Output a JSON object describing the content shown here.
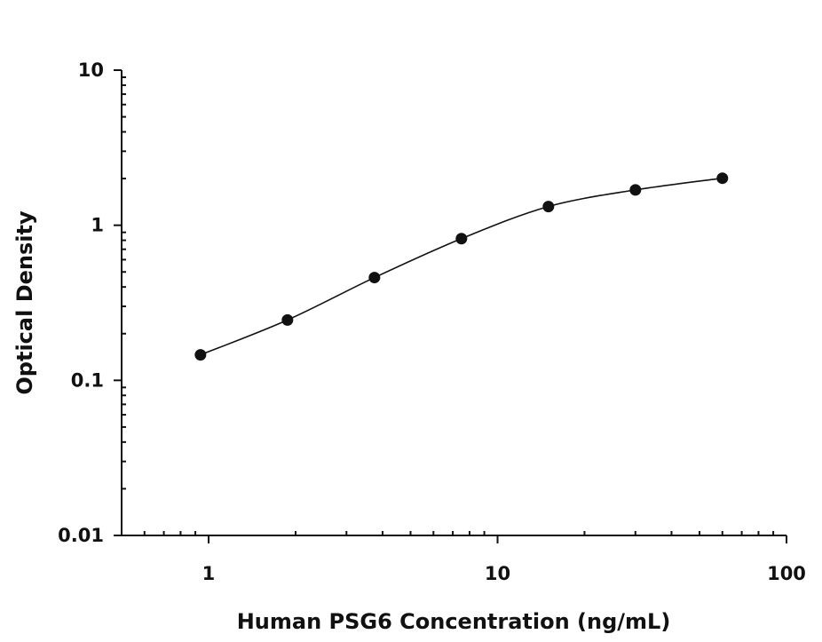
{
  "chart_data": {
    "type": "scatter",
    "title": "",
    "xlabel": "Human PSG6 Concentration (ng/mL)",
    "ylabel": "Optical Density",
    "xscale": "log",
    "yscale": "log",
    "xlim": [
      0.5,
      100
    ],
    "ylim": [
      0.01,
      10
    ],
    "xticks": [
      1,
      10,
      100
    ],
    "xtick_labels": [
      "1",
      "10",
      "100"
    ],
    "yticks": [
      0.01,
      0.1,
      1,
      10
    ],
    "ytick_labels": [
      "0.01",
      "0.1",
      "1",
      "10"
    ],
    "grid": false,
    "legend": "none",
    "fit_curve": true,
    "marker_color": "#111111",
    "series": [
      {
        "x": [
          0.9375,
          1.875,
          3.75,
          7.5,
          15,
          30,
          60
        ],
        "y": [
          0.146,
          0.245,
          0.46,
          0.82,
          1.32,
          1.69,
          2.01
        ]
      }
    ]
  }
}
